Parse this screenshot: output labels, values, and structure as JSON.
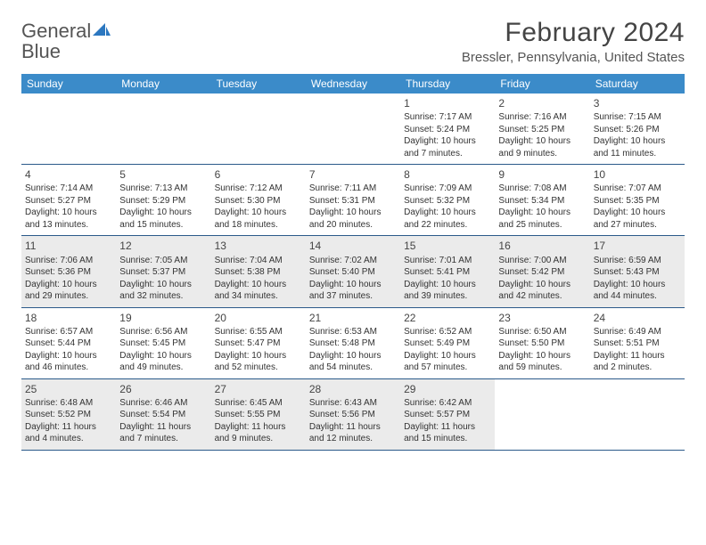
{
  "logo": {
    "text_general": "General",
    "text_blue": "Blue"
  },
  "header": {
    "month_year": "February 2024",
    "location": "Bressler, Pennsylvania, United States"
  },
  "day_names": [
    "Sunday",
    "Monday",
    "Tuesday",
    "Wednesday",
    "Thursday",
    "Friday",
    "Saturday"
  ],
  "colors": {
    "header_bg": "#3b8bc9",
    "header_text": "#ffffff",
    "row_border": "#2b5a8a",
    "shaded_bg": "#ebebeb",
    "text": "#333333",
    "logo_blue": "#2b77c0"
  },
  "weeks": [
    [
      {
        "day": "",
        "sunrise": "",
        "sunset": "",
        "daylight": ""
      },
      {
        "day": "",
        "sunrise": "",
        "sunset": "",
        "daylight": ""
      },
      {
        "day": "",
        "sunrise": "",
        "sunset": "",
        "daylight": ""
      },
      {
        "day": "",
        "sunrise": "",
        "sunset": "",
        "daylight": ""
      },
      {
        "day": "1",
        "sunrise": "Sunrise: 7:17 AM",
        "sunset": "Sunset: 5:24 PM",
        "daylight": "Daylight: 10 hours and 7 minutes."
      },
      {
        "day": "2",
        "sunrise": "Sunrise: 7:16 AM",
        "sunset": "Sunset: 5:25 PM",
        "daylight": "Daylight: 10 hours and 9 minutes."
      },
      {
        "day": "3",
        "sunrise": "Sunrise: 7:15 AM",
        "sunset": "Sunset: 5:26 PM",
        "daylight": "Daylight: 10 hours and 11 minutes."
      }
    ],
    [
      {
        "day": "4",
        "sunrise": "Sunrise: 7:14 AM",
        "sunset": "Sunset: 5:27 PM",
        "daylight": "Daylight: 10 hours and 13 minutes."
      },
      {
        "day": "5",
        "sunrise": "Sunrise: 7:13 AM",
        "sunset": "Sunset: 5:29 PM",
        "daylight": "Daylight: 10 hours and 15 minutes."
      },
      {
        "day": "6",
        "sunrise": "Sunrise: 7:12 AM",
        "sunset": "Sunset: 5:30 PM",
        "daylight": "Daylight: 10 hours and 18 minutes."
      },
      {
        "day": "7",
        "sunrise": "Sunrise: 7:11 AM",
        "sunset": "Sunset: 5:31 PM",
        "daylight": "Daylight: 10 hours and 20 minutes."
      },
      {
        "day": "8",
        "sunrise": "Sunrise: 7:09 AM",
        "sunset": "Sunset: 5:32 PM",
        "daylight": "Daylight: 10 hours and 22 minutes."
      },
      {
        "day": "9",
        "sunrise": "Sunrise: 7:08 AM",
        "sunset": "Sunset: 5:34 PM",
        "daylight": "Daylight: 10 hours and 25 minutes."
      },
      {
        "day": "10",
        "sunrise": "Sunrise: 7:07 AM",
        "sunset": "Sunset: 5:35 PM",
        "daylight": "Daylight: 10 hours and 27 minutes."
      }
    ],
    [
      {
        "day": "11",
        "sunrise": "Sunrise: 7:06 AM",
        "sunset": "Sunset: 5:36 PM",
        "daylight": "Daylight: 10 hours and 29 minutes."
      },
      {
        "day": "12",
        "sunrise": "Sunrise: 7:05 AM",
        "sunset": "Sunset: 5:37 PM",
        "daylight": "Daylight: 10 hours and 32 minutes."
      },
      {
        "day": "13",
        "sunrise": "Sunrise: 7:04 AM",
        "sunset": "Sunset: 5:38 PM",
        "daylight": "Daylight: 10 hours and 34 minutes."
      },
      {
        "day": "14",
        "sunrise": "Sunrise: 7:02 AM",
        "sunset": "Sunset: 5:40 PM",
        "daylight": "Daylight: 10 hours and 37 minutes."
      },
      {
        "day": "15",
        "sunrise": "Sunrise: 7:01 AM",
        "sunset": "Sunset: 5:41 PM",
        "daylight": "Daylight: 10 hours and 39 minutes."
      },
      {
        "day": "16",
        "sunrise": "Sunrise: 7:00 AM",
        "sunset": "Sunset: 5:42 PM",
        "daylight": "Daylight: 10 hours and 42 minutes."
      },
      {
        "day": "17",
        "sunrise": "Sunrise: 6:59 AM",
        "sunset": "Sunset: 5:43 PM",
        "daylight": "Daylight: 10 hours and 44 minutes."
      }
    ],
    [
      {
        "day": "18",
        "sunrise": "Sunrise: 6:57 AM",
        "sunset": "Sunset: 5:44 PM",
        "daylight": "Daylight: 10 hours and 46 minutes."
      },
      {
        "day": "19",
        "sunrise": "Sunrise: 6:56 AM",
        "sunset": "Sunset: 5:45 PM",
        "daylight": "Daylight: 10 hours and 49 minutes."
      },
      {
        "day": "20",
        "sunrise": "Sunrise: 6:55 AM",
        "sunset": "Sunset: 5:47 PM",
        "daylight": "Daylight: 10 hours and 52 minutes."
      },
      {
        "day": "21",
        "sunrise": "Sunrise: 6:53 AM",
        "sunset": "Sunset: 5:48 PM",
        "daylight": "Daylight: 10 hours and 54 minutes."
      },
      {
        "day": "22",
        "sunrise": "Sunrise: 6:52 AM",
        "sunset": "Sunset: 5:49 PM",
        "daylight": "Daylight: 10 hours and 57 minutes."
      },
      {
        "day": "23",
        "sunrise": "Sunrise: 6:50 AM",
        "sunset": "Sunset: 5:50 PM",
        "daylight": "Daylight: 10 hours and 59 minutes."
      },
      {
        "day": "24",
        "sunrise": "Sunrise: 6:49 AM",
        "sunset": "Sunset: 5:51 PM",
        "daylight": "Daylight: 11 hours and 2 minutes."
      }
    ],
    [
      {
        "day": "25",
        "sunrise": "Sunrise: 6:48 AM",
        "sunset": "Sunset: 5:52 PM",
        "daylight": "Daylight: 11 hours and 4 minutes."
      },
      {
        "day": "26",
        "sunrise": "Sunrise: 6:46 AM",
        "sunset": "Sunset: 5:54 PM",
        "daylight": "Daylight: 11 hours and 7 minutes."
      },
      {
        "day": "27",
        "sunrise": "Sunrise: 6:45 AM",
        "sunset": "Sunset: 5:55 PM",
        "daylight": "Daylight: 11 hours and 9 minutes."
      },
      {
        "day": "28",
        "sunrise": "Sunrise: 6:43 AM",
        "sunset": "Sunset: 5:56 PM",
        "daylight": "Daylight: 11 hours and 12 minutes."
      },
      {
        "day": "29",
        "sunrise": "Sunrise: 6:42 AM",
        "sunset": "Sunset: 5:57 PM",
        "daylight": "Daylight: 11 hours and 15 minutes."
      },
      {
        "day": "",
        "sunrise": "",
        "sunset": "",
        "daylight": ""
      },
      {
        "day": "",
        "sunrise": "",
        "sunset": "",
        "daylight": ""
      }
    ]
  ],
  "shaded_days": [
    "11",
    "12",
    "13",
    "14",
    "15",
    "16",
    "17",
    "25",
    "26",
    "27",
    "28",
    "29"
  ]
}
